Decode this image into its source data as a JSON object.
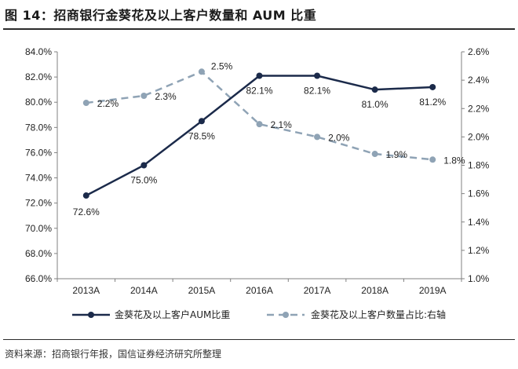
{
  "header": {
    "title": "图 14：招商银行金葵花及以上客户数量和 AUM 比重"
  },
  "footer": {
    "source": "资料来源：招商银行年报，国信证券经济研究所整理"
  },
  "colors": {
    "series1": "#1b2a4a",
    "series2": "#8fa3b5",
    "axis": "#808080"
  },
  "chart_data": {
    "type": "line",
    "categories": [
      "2013A",
      "2014A",
      "2015A",
      "2016A",
      "2017A",
      "2018A",
      "2019A"
    ],
    "y_left": {
      "min": 66.0,
      "max": 84.0,
      "step": 2.0,
      "ticks": [
        "66.0%",
        "68.0%",
        "70.0%",
        "72.0%",
        "74.0%",
        "76.0%",
        "78.0%",
        "80.0%",
        "82.0%",
        "84.0%"
      ]
    },
    "y_right": {
      "min": 1.0,
      "max": 2.6,
      "step": 0.2,
      "ticks": [
        "1.0%",
        "1.2%",
        "1.4%",
        "1.6%",
        "1.8%",
        "2.0%",
        "2.2%",
        "2.4%",
        "2.6%"
      ]
    },
    "series": [
      {
        "name": "金葵花及以上客户AUM比重",
        "axis": "left",
        "style": "solid",
        "values": [
          72.6,
          75.0,
          78.5,
          82.1,
          82.1,
          81.0,
          81.2
        ],
        "labels": [
          "72.6%",
          "75.0%",
          "78.5%",
          "82.1%",
          "82.1%",
          "81.0%",
          "81.2%"
        ]
      },
      {
        "name": "金葵花及以上客户数量占比:右轴",
        "axis": "right",
        "style": "dashed",
        "values": [
          2.24,
          2.29,
          2.46,
          2.09,
          2.0,
          1.88,
          1.84
        ],
        "labels": [
          "2.2%",
          "2.3%",
          "2.5%",
          "2.1%",
          "2.0%",
          "1.9%",
          "1.8%"
        ]
      }
    ],
    "legend_position": "bottom",
    "grid": false
  }
}
